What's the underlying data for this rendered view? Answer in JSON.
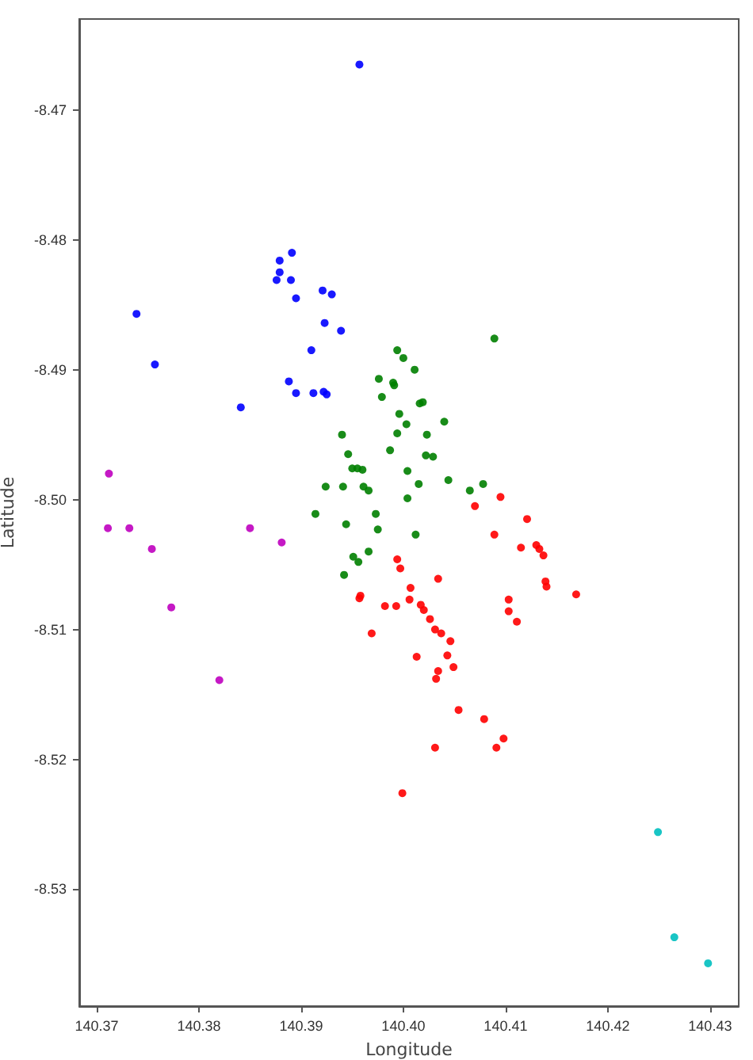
{
  "chart_data": {
    "type": "scatter",
    "xlabel": "Longitude",
    "ylabel": "Latitude",
    "marker": "circle",
    "xlim": [
      140.3683,
      140.4328
    ],
    "ylim": [
      -8.539,
      -8.463
    ],
    "xticks": [
      140.37,
      140.38,
      140.39,
      {
        "value": 140.4,
        "label": "140.40"
      },
      140.41,
      140.42,
      140.43
    ],
    "yticks": [
      -8.53,
      -8.52,
      -8.51,
      {
        "value": -8.5,
        "label": "-8.50"
      },
      -8.49,
      -8.48,
      -8.47
    ],
    "series": [
      {
        "color": "#0000ff",
        "x": [
          140.3957,
          140.3879,
          140.3891,
          140.3879,
          140.3876,
          140.389,
          140.3895,
          140.3921,
          140.393,
          140.3923,
          140.3939,
          140.391,
          140.3739,
          140.3757,
          140.3888,
          140.3895,
          140.3912,
          140.3922,
          140.3925,
          140.3841
        ],
        "values": [
          -8.4665,
          -8.4816,
          -8.481,
          -8.4825,
          -8.4831,
          -8.4831,
          -8.4845,
          -8.4839,
          -8.4842,
          -8.4864,
          -8.487,
          -8.4885,
          -8.4857,
          -8.4896,
          -8.4909,
          -8.4918,
          -8.4918,
          -8.4917,
          -8.4919,
          -8.4929
        ]
      },
      {
        "color": "#bf00bf",
        "x": [
          140.3712,
          140.3711,
          140.3732,
          140.3754,
          140.3773,
          140.385,
          140.3881,
          140.382
        ],
        "values": [
          -8.498,
          -8.5022,
          -8.5022,
          -8.5038,
          -8.5083,
          -8.5022,
          -8.5033,
          -8.5139
        ]
      },
      {
        "color": "#00bfbf",
        "x": [
          140.4249,
          140.4265,
          140.4298
        ],
        "values": [
          -8.5256,
          -8.5337,
          -8.5357
        ]
      },
      {
        "color": "#008000",
        "x": [
          140.4089,
          140.3994,
          140.4,
          140.4011,
          140.3976,
          140.399,
          140.3991,
          140.3979,
          140.4016,
          140.4019,
          140.3996,
          140.4003,
          140.404,
          140.394,
          140.3994,
          140.4023,
          140.3987,
          140.3946,
          140.4022,
          140.4029,
          140.395,
          140.3955,
          140.396,
          140.4004,
          140.4044,
          140.3924,
          140.3941,
          140.3961,
          140.3966,
          140.4015,
          140.4065,
          140.4078,
          140.4004,
          140.3914,
          140.3973,
          140.3944,
          140.3975,
          140.4012,
          140.3966,
          140.3951,
          140.3956,
          140.3942
        ],
        "values": [
          -8.4876,
          -8.4885,
          -8.4891,
          -8.49,
          -8.4907,
          -8.491,
          -8.4912,
          -8.4921,
          -8.4926,
          -8.4925,
          -8.4934,
          -8.4942,
          -8.494,
          -8.495,
          -8.4949,
          -8.495,
          -8.4962,
          -8.4965,
          -8.4966,
          -8.4967,
          -8.4976,
          -8.4976,
          -8.4977,
          -8.4978,
          -8.4985,
          -8.499,
          -8.499,
          -8.499,
          -8.4993,
          -8.4988,
          -8.4993,
          -8.4988,
          -8.4999,
          -8.5011,
          -8.5011,
          -8.5019,
          -8.5023,
          -8.5027,
          -8.504,
          -8.5044,
          -8.5048,
          -8.5058
        ]
      },
      {
        "color": "#ff0000",
        "x": [
          140.4095,
          140.407,
          140.4121,
          140.4089,
          140.4115,
          140.413,
          140.4133,
          140.4137,
          140.4139,
          140.414,
          140.4169,
          140.4103,
          140.4103,
          140.4111,
          140.3994,
          140.3997,
          140.4034,
          140.3958,
          140.3957,
          140.4007,
          140.4006,
          140.3982,
          140.3993,
          140.4017,
          140.402,
          140.4026,
          140.3969,
          140.4031,
          140.4037,
          140.4046,
          140.4013,
          140.4043,
          140.4049,
          140.4034,
          140.4032,
          140.4054,
          140.4079,
          140.4098,
          140.4091,
          140.4031,
          140.3999
        ],
        "values": [
          -8.4998,
          -8.5005,
          -8.5015,
          -8.5027,
          -8.5037,
          -8.5035,
          -8.5038,
          -8.5043,
          -8.5063,
          -8.5067,
          -8.5073,
          -8.5077,
          -8.5086,
          -8.5094,
          -8.5046,
          -8.5053,
          -8.5061,
          -8.5074,
          -8.5076,
          -8.5068,
          -8.5077,
          -8.5082,
          -8.5082,
          -8.5081,
          -8.5085,
          -8.5092,
          -8.5103,
          -8.51,
          -8.5103,
          -8.5109,
          -8.5121,
          -8.512,
          -8.5129,
          -8.5132,
          -8.5138,
          -8.5162,
          -8.5169,
          -8.5184,
          -8.5191,
          -8.5191,
          -8.5226
        ]
      }
    ]
  }
}
